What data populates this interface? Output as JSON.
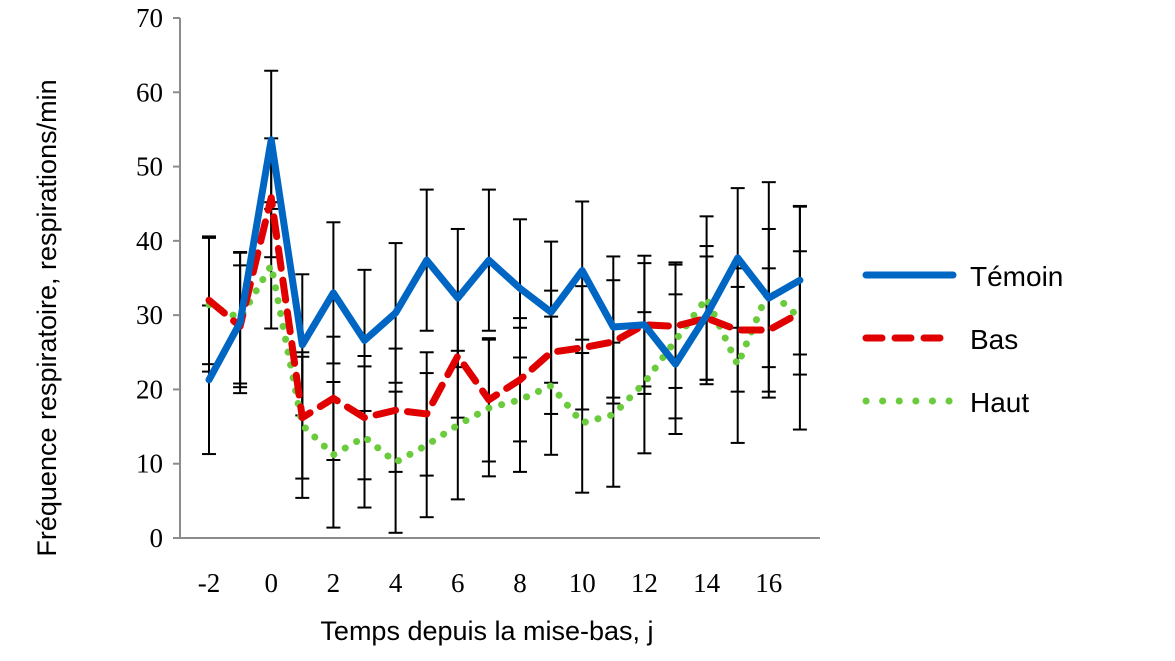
{
  "chart_data": {
    "type": "line",
    "title": "",
    "xlabel": "Temps depuis la mise-bas, j",
    "ylabel": "Fréquence respiratoire, respirations/min",
    "xlim": [
      -2.95,
      17.6
    ],
    "ylim": [
      0,
      70
    ],
    "yticks": [
      "0",
      "10",
      "20",
      "30",
      "40",
      "50",
      "60",
      "70"
    ],
    "xticks": [
      "-2",
      "0",
      "2",
      "4",
      "6",
      "8",
      "10",
      "12",
      "14",
      "16"
    ],
    "grid": false,
    "legend_position": "right",
    "x": [
      -2,
      -1,
      0,
      1,
      2,
      3,
      4,
      5,
      6,
      7,
      8,
      9,
      10,
      11,
      12,
      13,
      14,
      15,
      16,
      17
    ],
    "series": [
      {
        "name": "Témoin",
        "color": "#0066c4",
        "style": "solid",
        "values": [
          21.3,
          29,
          53.6,
          26,
          33,
          26.6,
          30.3,
          37.4,
          32.3,
          37.4,
          33.6,
          30.4,
          36,
          28.4,
          28.7,
          23.4,
          30,
          37.7,
          32.3,
          34.7
        ],
        "error": [
          10,
          9.5,
          9.3,
          9.5,
          9.5,
          9.5,
          9.4,
          9.5,
          9.3,
          9.5,
          9.3,
          9.5,
          9.3,
          9.5,
          9.3,
          9.4,
          9.3,
          9.4,
          9.3,
          10
        ]
      },
      {
        "name": "Bas",
        "color": "#e00000",
        "style": "dashed",
        "values": [
          32,
          28.5,
          45.8,
          16.2,
          18.8,
          16.2,
          17.2,
          16.7,
          24.5,
          18.6,
          21.3,
          25,
          25.6,
          26.4,
          28.7,
          28.5,
          29.6,
          28,
          28,
          30.3
        ],
        "error": [
          8.6,
          8.2,
          8,
          8.2,
          8.3,
          8.3,
          8.3,
          8.3,
          8.3,
          8.3,
          8.3,
          8.3,
          8.3,
          8.3,
          8.3,
          8.3,
          8.3,
          8.3,
          8.3,
          8.3
        ]
      },
      {
        "name": "Haut",
        "color": "#6acc3c",
        "style": "dotted",
        "values": [
          31.4,
          29.6,
          36.7,
          15.2,
          11.2,
          13.6,
          10.2,
          12.5,
          15.2,
          17.5,
          18.6,
          20.5,
          15.5,
          16.6,
          20.9,
          26.6,
          32.3,
          23.3,
          33.4,
          29.6
        ],
        "error": [
          9,
          8.8,
          8.5,
          9.8,
          9.8,
          9.5,
          9.5,
          9.7,
          10,
          9.2,
          9.7,
          9.3,
          9.4,
          9.7,
          9.5,
          10.5,
          11,
          10.5,
          14.5,
          15
        ]
      }
    ]
  }
}
